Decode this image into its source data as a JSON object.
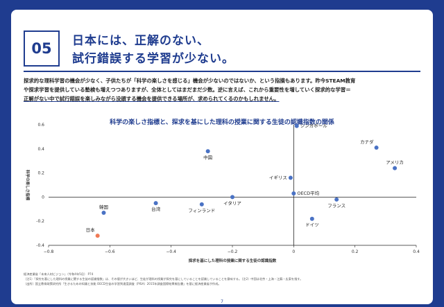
{
  "section": {
    "number": "05",
    "title_lines": [
      "日本には、正解のない、",
      "試行錯誤する学習が少ない。"
    ]
  },
  "body": {
    "line1": "探求的な理科学習の機会が少なく、子供たちが「科学の楽しさを感じる」機会が少ないのではないか、という指摘もあります。昨今STEAM教育",
    "line2": "や探求学習を提供している塾検も増えつつありますが、全体としてはまだまだ少数。逆に言えば、これから重要性を増していく探求的な学習＝",
    "line3": "正解がない中で試行錯誤を楽しみながら没頭する機会を提供できる場所が、求められてくるのかもしれません。"
  },
  "chart_title": "科学の楽しさ指標と、探求を基にした理科の授業に関する生徒の認識指数の関係",
  "chart_data": {
    "type": "scatter",
    "title": "科学の楽しさ指標と、探求を基にした理科の授業に関する生徒の認識指数の関係",
    "xlabel": "探求を基にした理科の授業に関する生徒の認識指数",
    "ylabel": "科学の楽しさ指標",
    "xlim": [
      -0.8,
      0.4
    ],
    "ylim": [
      -0.4,
      0.6
    ],
    "xticks": [
      -0.8,
      -0.6,
      -0.4,
      -0.2,
      0,
      0.2,
      0.4
    ],
    "yticks": [
      -0.4,
      -0.2,
      0,
      0.2,
      0.4,
      0.6
    ],
    "xtick_labels": [
      "−0.8",
      "−0.6",
      "−0.4",
      "−0.2",
      "0",
      "0.2",
      "0.4"
    ],
    "ytick_labels": [
      "-0.4",
      "-0.2",
      "0",
      "0.2",
      "0.4",
      "0.6"
    ],
    "grid": false,
    "points": [
      {
        "label": "シンガポール",
        "x": 0.01,
        "y": 0.59,
        "color": "#4a72c4",
        "label_pos": "right"
      },
      {
        "label": "カナダ",
        "x": 0.27,
        "y": 0.41,
        "color": "#4a72c4",
        "label_pos": "above-left"
      },
      {
        "label": "アメリカ",
        "x": 0.33,
        "y": 0.24,
        "color": "#4a72c4",
        "label_pos": "above"
      },
      {
        "label": "中国",
        "x": -0.28,
        "y": 0.38,
        "color": "#4a72c4",
        "label_pos": "below"
      },
      {
        "label": "イギリス",
        "x": -0.01,
        "y": 0.16,
        "color": "#4a72c4",
        "label_pos": "left"
      },
      {
        "label": "OECD平均",
        "x": 0.0,
        "y": 0.03,
        "color": "#4a72c4",
        "label_pos": "right"
      },
      {
        "label": "イタリア",
        "x": -0.2,
        "y": 0.0,
        "color": "#4a72c4",
        "label_pos": "below"
      },
      {
        "label": "フランス",
        "x": 0.14,
        "y": -0.02,
        "color": "#4a72c4",
        "label_pos": "below"
      },
      {
        "label": "ドイツ",
        "x": 0.06,
        "y": -0.18,
        "color": "#4a72c4",
        "label_pos": "below"
      },
      {
        "label": "台湾",
        "x": -0.45,
        "y": -0.05,
        "color": "#4a72c4",
        "label_pos": "below"
      },
      {
        "label": "フィンランド",
        "x": -0.3,
        "y": -0.06,
        "color": "#4a72c4",
        "label_pos": "below"
      },
      {
        "label": "韓国",
        "x": -0.62,
        "y": -0.13,
        "color": "#4a72c4",
        "label_pos": "above"
      },
      {
        "label": "日本",
        "x": -0.64,
        "y": -0.32,
        "color": "#f07a55",
        "label_pos": "above-left"
      }
    ]
  },
  "footnotes": {
    "l1": "経済産業省「未来人材ビジョン」（令和4年5月） P74",
    "l2": "（注1）「探究を基にした理科の授業に関する生徒の認識指数」は、その値が大きいほど、生徒が理科の授業が探究を基にしていることを認識していることを意味する。（注2）中国は北京・上海・江蘇・広東を指す。",
    "l3": "（出所）国立教育政策研究所「生きるための知識と技能 OECD生徒の学習到達度調査（PISA）2015年調査国際結果報告書」を基に経済産業省が作成。"
  },
  "page_number": "7",
  "colors": {
    "brand": "#1f3c8f",
    "point": "#4a72c4",
    "japan": "#f07a55"
  }
}
